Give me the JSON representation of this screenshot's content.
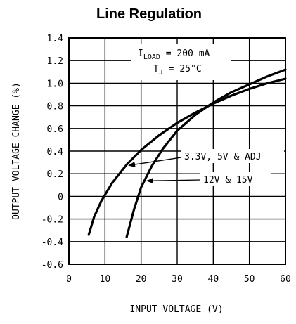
{
  "chart_data": {
    "type": "line",
    "title": "Line Regulation",
    "xlabel": "INPUT VOLTAGE (V)",
    "ylabel": "OUTPUT VOLTAGE CHANGE (%)",
    "xlim": [
      0,
      60
    ],
    "ylim": [
      -0.6,
      1.4
    ],
    "x_ticks": [
      0,
      10,
      20,
      30,
      40,
      50,
      60
    ],
    "x_tick_labels": [
      "0",
      "10",
      "20",
      "30",
      "40",
      "50",
      "60"
    ],
    "y_ticks": [
      -0.6,
      -0.4,
      -0.2,
      0,
      0.2,
      0.4,
      0.6,
      0.8,
      1.0,
      1.2,
      1.4
    ],
    "y_tick_labels": [
      "-0.6",
      "-0.4",
      "-0.2",
      "0",
      "0.2",
      "0.4",
      "0.6",
      "0.8",
      "1.0",
      "1.2",
      "1.4"
    ],
    "grid": true,
    "series": [
      {
        "name": "3.3V, 5V & ADJ",
        "x": [
          5.5,
          7,
          9,
          12,
          16,
          20,
          25,
          30,
          35,
          40,
          45,
          50,
          55,
          60
        ],
        "y": [
          -0.34,
          -0.18,
          -0.04,
          0.12,
          0.28,
          0.41,
          0.54,
          0.65,
          0.74,
          0.82,
          0.89,
          0.95,
          1.0,
          1.04
        ]
      },
      {
        "name": "12V & 15V",
        "x": [
          16,
          18,
          20,
          23,
          26,
          30,
          35,
          40,
          45,
          50,
          55,
          60
        ],
        "y": [
          -0.36,
          -0.12,
          0.08,
          0.27,
          0.42,
          0.58,
          0.72,
          0.83,
          0.92,
          0.99,
          1.06,
          1.12
        ]
      }
    ],
    "conditions": {
      "load_prefix": "I",
      "load_sub": "LOAD",
      "load_value": " = 200 mA",
      "temp_prefix": "T",
      "temp_sub": "J",
      "temp_value": " = 25°C"
    },
    "annotations": [
      {
        "text": "3.3V, 5V & ADJ",
        "series": "3.3V, 5V & ADJ",
        "arrow_x": 16
      },
      {
        "text": "12V & 15V",
        "series": "12V & 15V",
        "arrow_x": 21
      }
    ]
  }
}
